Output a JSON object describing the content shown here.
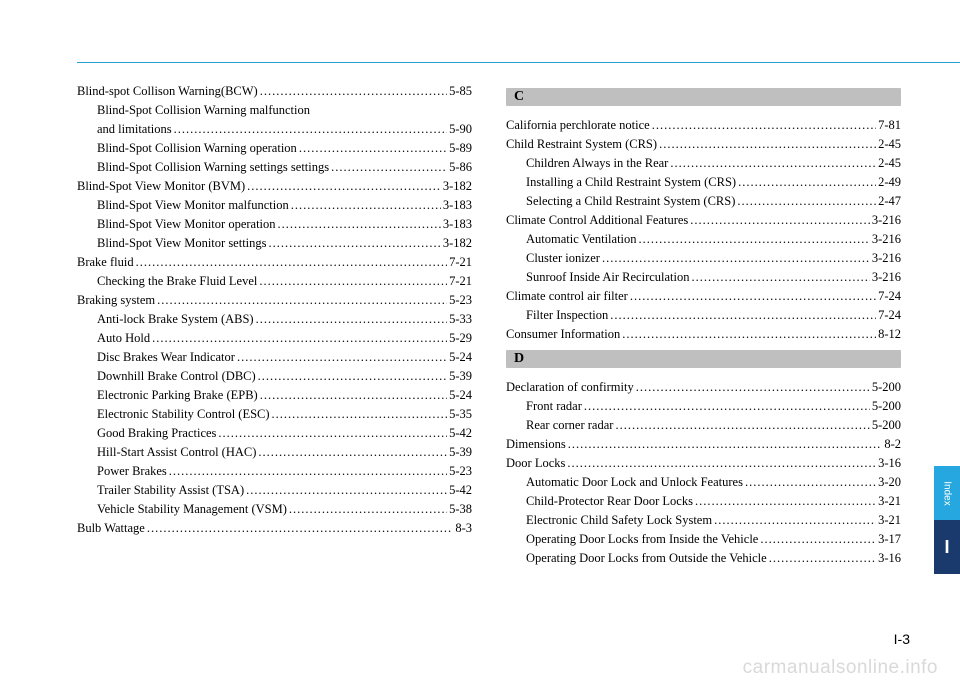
{
  "page_number": "I-3",
  "watermark": "carmanualsonline.info",
  "side_tabs": {
    "index_label": "Index",
    "letter": "I"
  },
  "left": [
    {
      "t": "Blind-spot Collison Warning(BCW)",
      "p": "5-85",
      "sub": 0
    },
    {
      "t": "Blind-Spot Collision Warning malfunction",
      "p": "",
      "sub": 1,
      "noleader": true
    },
    {
      "t": "and limitations",
      "p": "5-90",
      "sub": 1,
      "cont": true
    },
    {
      "t": "Blind-Spot Collision Warning operation ",
      "p": "5-89",
      "sub": 1
    },
    {
      "t": "Blind-Spot Collision Warning settings settings ",
      "p": "5-86",
      "sub": 1
    },
    {
      "t": "Blind-Spot View Monitor (BVM)  ",
      "p": "3-182",
      "sub": 0
    },
    {
      "t": "Blind-Spot View Monitor malfunction ",
      "p": "3-183",
      "sub": 1
    },
    {
      "t": "Blind-Spot View Monitor operation",
      "p": "3-183",
      "sub": 1
    },
    {
      "t": "Blind-Spot View Monitor settings ",
      "p": "3-182",
      "sub": 1
    },
    {
      "t": "Brake fluid ",
      "p": "7-21",
      "sub": 0
    },
    {
      "t": "Checking the Brake Fluid Level ",
      "p": "7-21",
      "sub": 1
    },
    {
      "t": "Braking system ",
      "p": "5-23",
      "sub": 0
    },
    {
      "t": "Anti-lock Brake System (ABS)",
      "p": "5-33",
      "sub": 1
    },
    {
      "t": "Auto Hold",
      "p": "5-29",
      "sub": 1
    },
    {
      "t": "Disc Brakes Wear Indicator",
      "p": "5-24",
      "sub": 1
    },
    {
      "t": "Downhill Brake Control (DBC) ",
      "p": "5-39",
      "sub": 1
    },
    {
      "t": "Electronic Parking Brake (EPB) ",
      "p": "5-24",
      "sub": 1
    },
    {
      "t": "Electronic Stability Control (ESC)",
      "p": "5-35",
      "sub": 1
    },
    {
      "t": "Good Braking Practices  ",
      "p": "5-42",
      "sub": 1
    },
    {
      "t": "Hill-Start Assist Control (HAC)",
      "p": "5-39",
      "sub": 1
    },
    {
      "t": "Power Brakes",
      "p": "5-23",
      "sub": 1
    },
    {
      "t": "Trailer Stability Assist (TSA)",
      "p": "5-42",
      "sub": 1
    },
    {
      "t": "Vehicle Stability Management (VSM)",
      "p": "5-38",
      "sub": 1
    },
    {
      "t": "Bulb Wattage",
      "p": "8-3",
      "sub": 0
    }
  ],
  "right": [
    {
      "heading": "C"
    },
    {
      "t": "California perchlorate notice ",
      "p": "7-81",
      "sub": 0
    },
    {
      "t": "Child Restraint System (CRS)",
      "p": "2-45",
      "sub": 0
    },
    {
      "t": "Children Always in the Rear",
      "p": "2-45",
      "sub": 1
    },
    {
      "t": "Installing a Child Restraint System (CRS) ",
      "p": "2-49",
      "sub": 1
    },
    {
      "t": "Selecting a Child Restraint System (CRS)",
      "p": "2-47",
      "sub": 1
    },
    {
      "t": "Climate Control Additional Features",
      "p": "3-216",
      "sub": 0
    },
    {
      "t": "Automatic Ventilation",
      "p": "3-216",
      "sub": 1
    },
    {
      "t": "Cluster ionizer  ",
      "p": "3-216",
      "sub": 1
    },
    {
      "t": "Sunroof Inside Air Recirculation  ",
      "p": "3-216",
      "sub": 1
    },
    {
      "t": "Climate control air filter ",
      "p": "7-24",
      "sub": 0
    },
    {
      "t": "Filter Inspection",
      "p": "7-24",
      "sub": 1
    },
    {
      "t": "Consumer Information",
      "p": "8-12",
      "sub": 0
    },
    {
      "heading": "D"
    },
    {
      "t": "Declaration of confirmity ",
      "p": "5-200",
      "sub": 0
    },
    {
      "t": "Front radar ",
      "p": "5-200",
      "sub": 1
    },
    {
      "t": "Rear corner radar  ",
      "p": "5-200",
      "sub": 1
    },
    {
      "t": "Dimensions ",
      "p": "8-2",
      "sub": 0
    },
    {
      "t": "Door Locks ",
      "p": "3-16",
      "sub": 0
    },
    {
      "t": "Automatic Door Lock and Unlock Features",
      "p": "3-20",
      "sub": 1
    },
    {
      "t": "Child-Protector Rear Door Locks  ",
      "p": "3-21",
      "sub": 1
    },
    {
      "t": "Electronic Child Safety Lock System  ",
      "p": "3-21",
      "sub": 1
    },
    {
      "t": "Operating Door Locks from Inside the Vehicle  ",
      "p": "3-17",
      "sub": 1
    },
    {
      "t": "Operating Door Locks from Outside the Vehicle  ",
      "p": "3-16",
      "sub": 1
    }
  ]
}
